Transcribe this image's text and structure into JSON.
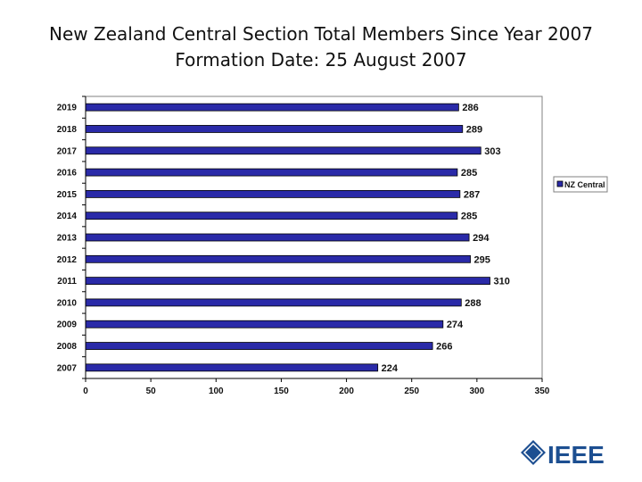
{
  "chart_data": {
    "type": "bar",
    "orientation": "horizontal",
    "title": "New Zealand Central Section Total Members Since Year 2007",
    "subtitle": "Formation Date: 25 August 2007",
    "categories": [
      "2019",
      "2018",
      "2017",
      "2016",
      "2015",
      "2014",
      "2013",
      "2012",
      "2011",
      "2010",
      "2009",
      "2008",
      "2007"
    ],
    "series": [
      {
        "name": "NZ Central",
        "values": [
          286,
          289,
          303,
          285,
          287,
          285,
          294,
          295,
          310,
          288,
          274,
          266,
          224
        ],
        "color": "#2a2aa8"
      }
    ],
    "xlim": [
      0,
      350
    ],
    "xticks": [
      0,
      50,
      100,
      150,
      200,
      250,
      300,
      350
    ],
    "xlabel": "",
    "ylabel": "",
    "grid": false,
    "legend": "right"
  },
  "logo": {
    "text": "IEEE",
    "color": "#1d4f91"
  }
}
